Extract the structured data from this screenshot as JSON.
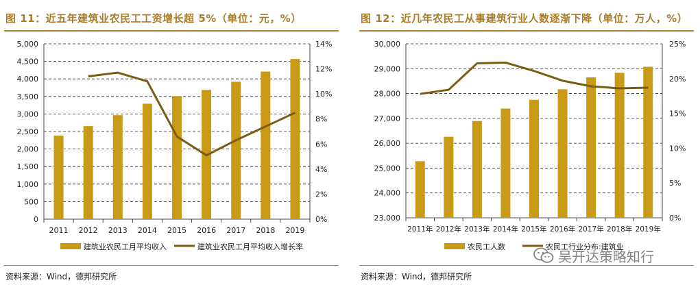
{
  "colors": {
    "accent": "#a87e2a",
    "bar": "#c89a16",
    "line": "#7a5c12",
    "grid": "#222222"
  },
  "left": {
    "title": "图 11：近五年建筑业农民工工资增长超 5%（单位：元，%）",
    "source": "资料来源：Wind，德邦研究所"
  },
  "right": {
    "title": "图 12：近几年农民工从事建筑行业人数逐渐下降（单位：万人，%）",
    "source": "资料来源：Wind，德邦研究所"
  },
  "watermark": {
    "text": "吴开达策略知行"
  },
  "chart_data": [
    {
      "type": "bar",
      "title": "图 11：近五年建筑业农民工工资增长超 5%（单位：元，%）",
      "categories": [
        "2011",
        "2012",
        "2013",
        "2014",
        "2015",
        "2016",
        "2017",
        "2018",
        "2019"
      ],
      "y_ticks": [
        "0",
        "500",
        "1,000",
        "1,500",
        "2,000",
        "2,500",
        "3,000",
        "3,500",
        "4,000",
        "4,500",
        "5,000"
      ],
      "ylim": [
        0,
        5000
      ],
      "y2_ticks": [
        "0%",
        "2%",
        "4%",
        "6%",
        "8%",
        "10%",
        "12%",
        "14%"
      ],
      "y2lim": [
        0,
        14
      ],
      "grid": true,
      "series": [
        {
          "name": "建筑业农民工月平均收入",
          "type": "bar",
          "axis": "left",
          "values": [
            2382,
            2654,
            2965,
            3292,
            3508,
            3687,
            3918,
            4209,
            4567
          ]
        },
        {
          "name": "建筑业农民工月平均收入增长率",
          "type": "line",
          "axis": "right",
          "values": [
            null,
            11.4,
            11.7,
            11.0,
            6.6,
            5.1,
            6.3,
            7.4,
            8.5
          ]
        }
      ],
      "legend": "bottom"
    },
    {
      "type": "bar",
      "title": "图 12：近几年农民工从事建筑行业人数逐渐下降（单位：万人，%）",
      "categories": [
        "2011年",
        "2012年",
        "2013年",
        "2014年",
        "2015年",
        "2016年",
        "2017年",
        "2018年",
        "2019年"
      ],
      "y_ticks": [
        "23,000",
        "24,000",
        "25,000",
        "26,000",
        "27,000",
        "28,000",
        "29,000",
        "30,000"
      ],
      "ylim": [
        23000,
        30000
      ],
      "y2_ticks": [
        "0%",
        "5%",
        "10%",
        "15%",
        "20%",
        "25%"
      ],
      "y2lim": [
        0,
        25
      ],
      "grid": true,
      "series": [
        {
          "name": "农民工人数",
          "type": "bar",
          "axis": "left",
          "values": [
            25278,
            26261,
            26894,
            27395,
            27747,
            28171,
            28652,
            28836,
            29077
          ]
        },
        {
          "name": "农民工行业分布:建筑业",
          "type": "line",
          "axis": "right",
          "values": [
            17.8,
            18.4,
            22.2,
            22.3,
            21.1,
            19.7,
            18.9,
            18.6,
            18.7
          ]
        }
      ],
      "legend": "bottom"
    }
  ]
}
